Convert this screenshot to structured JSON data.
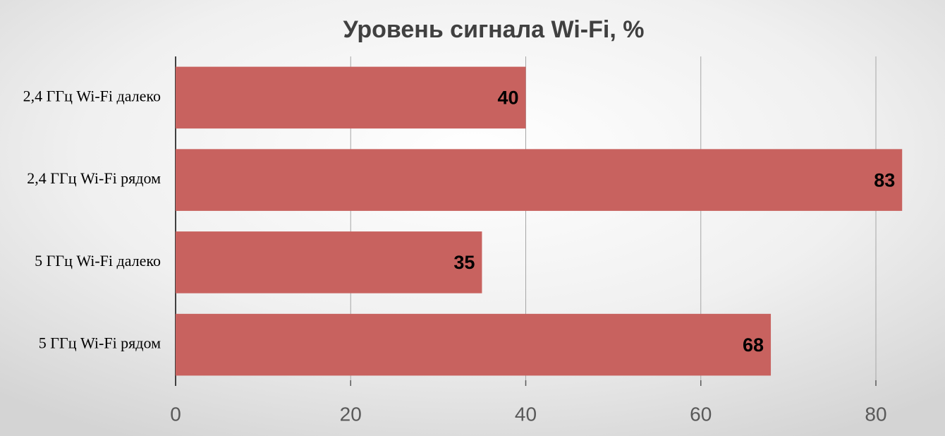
{
  "chart_data": {
    "type": "bar",
    "orientation": "horizontal",
    "title": "Уровень сигнала Wi-Fi, %",
    "categories": [
      "2,4 ГГц Wi-Fi далеко",
      "2,4 ГГц Wi-Fi рядом",
      "5 ГГц Wi-Fi далеко",
      "5 ГГц Wi-Fi рядом"
    ],
    "values": [
      40,
      83,
      35,
      68
    ],
    "color": "#c8625f",
    "xlim": [
      0,
      85
    ],
    "xticks": [
      0,
      20,
      40,
      60,
      80
    ],
    "grid": true
  }
}
